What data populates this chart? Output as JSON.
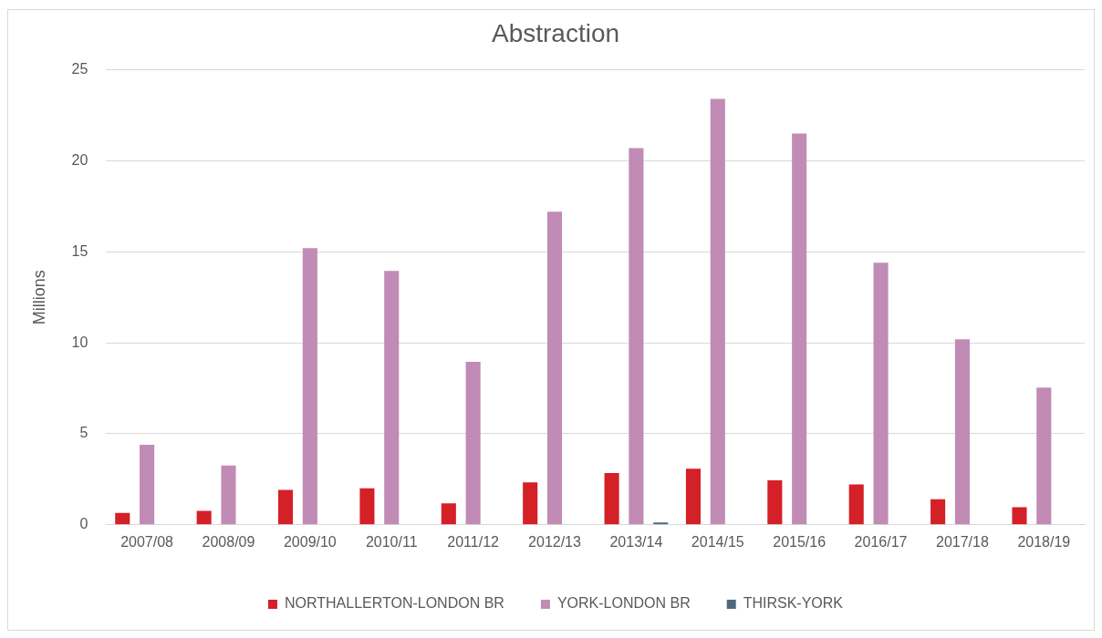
{
  "chart_data": {
    "type": "bar",
    "title": "Abstraction",
    "ylabel": "Millions",
    "categories": [
      "2007/08",
      "2008/09",
      "2009/10",
      "2010/11",
      "2011/12",
      "2012/13",
      "2013/14",
      "2014/15",
      "2015/16",
      "2016/17",
      "2017/18",
      "2018/19"
    ],
    "series": [
      {
        "name": "NORTHALLERTON-LONDON BR",
        "color": "#d42027",
        "values": [
          0.65,
          0.76,
          1.92,
          2.01,
          1.18,
          2.33,
          2.85,
          3.08,
          2.44,
          2.22,
          1.4,
          0.97
        ]
      },
      {
        "name": "YORK-LONDON BR",
        "color": "#c08bb5",
        "values": [
          4.4,
          3.26,
          15.2,
          13.95,
          8.95,
          17.2,
          20.7,
          23.4,
          21.5,
          14.4,
          10.2,
          7.54
        ]
      },
      {
        "name": "THIRSK-YORK",
        "color": "#4e6a7c",
        "values": [
          null,
          null,
          null,
          null,
          null,
          null,
          0.13,
          null,
          null,
          null,
          null,
          null
        ]
      }
    ],
    "ylim": [
      0,
      25
    ],
    "yticks": [
      0,
      5,
      10,
      15,
      20,
      25
    ],
    "grid": "y",
    "legend": "bottom"
  }
}
